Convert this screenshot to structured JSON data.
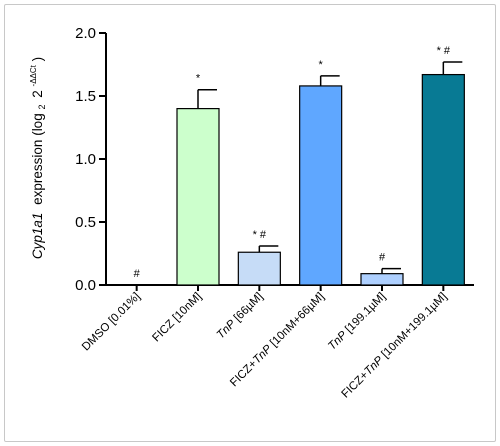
{
  "chart_data": {
    "type": "bar",
    "ylabel": {
      "gene": "Cyp1a1",
      "text": "expression (log",
      "sub": "2",
      "base": "2",
      "sup": "-ΔΔCt",
      "close": ")"
    },
    "ylim": [
      0,
      2.0
    ],
    "yticks": [
      "0.0",
      "0.5",
      "1.0",
      "1.5",
      "2.0"
    ],
    "categories": [
      {
        "parts": [
          {
            "t": "DMSO [0.01%]",
            "i": false
          }
        ]
      },
      {
        "parts": [
          {
            "t": "FICZ [10nM]",
            "i": false
          }
        ]
      },
      {
        "parts": [
          {
            "t": "TnP",
            "i": true
          },
          {
            "t": " [66µM]",
            "i": false
          }
        ]
      },
      {
        "parts": [
          {
            "t": "FICZ+",
            "i": false
          },
          {
            "t": "TnP",
            "i": true
          },
          {
            "t": " [10nM+66µM]",
            "i": false
          }
        ]
      },
      {
        "parts": [
          {
            "t": "TnP",
            "i": true
          },
          {
            "t": " [199.1µM]",
            "i": false
          }
        ]
      },
      {
        "parts": [
          {
            "t": "FICZ+",
            "i": false
          },
          {
            "t": "TnP",
            "i": true
          },
          {
            "t": " [10nM+199.1µM]",
            "i": false
          }
        ]
      }
    ],
    "values": [
      0.0,
      1.4,
      0.26,
      1.58,
      0.09,
      1.67
    ],
    "errors": [
      0.0,
      0.15,
      0.05,
      0.08,
      0.04,
      0.1
    ],
    "significance": [
      "#",
      "*",
      "* #",
      "*",
      "#",
      "* #"
    ],
    "colors": [
      "#ffffff",
      "#ccffcc",
      "#c6dcf7",
      "#5fa7ff",
      "#aed0ff",
      "#087a94"
    ],
    "grid": false,
    "legend": "none"
  }
}
